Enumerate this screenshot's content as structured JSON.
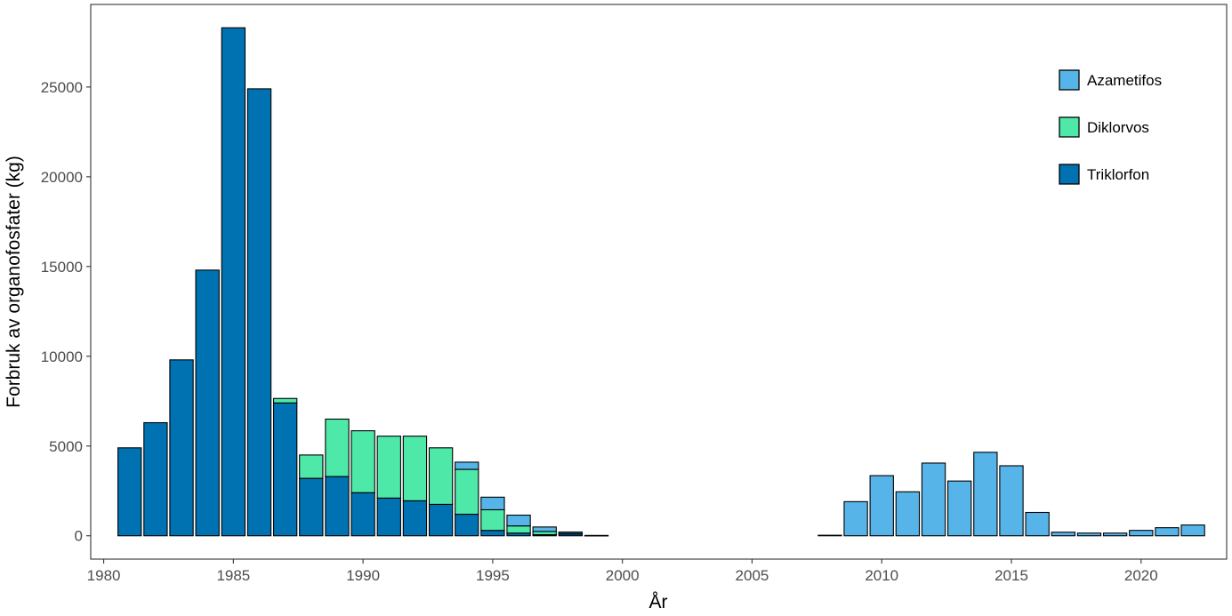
{
  "chart_data": {
    "type": "bar",
    "stacked": true,
    "title": "",
    "xlabel": "År",
    "ylabel": "Forbruk av organofosfater (kg)",
    "xlim": [
      1979.5,
      2023.3
    ],
    "ylim": [
      -1300,
      29600
    ],
    "x_ticks": [
      1980,
      1985,
      1990,
      1995,
      2000,
      2005,
      2010,
      2015,
      2020
    ],
    "y_ticks": [
      0,
      5000,
      10000,
      15000,
      20000,
      25000
    ],
    "grid": false,
    "legend_position": "top-right",
    "stack_order": [
      "Triklorfon",
      "Diklorvos",
      "Azametifos"
    ],
    "legend_order": [
      "Azametifos",
      "Diklorvos",
      "Triklorfon"
    ],
    "colors": {
      "Azametifos": "#56b4e9",
      "Diklorvos": "#4ee8a8",
      "Triklorfon": "#0072b2"
    },
    "x": [
      1981,
      1982,
      1983,
      1984,
      1985,
      1986,
      1987,
      1988,
      1989,
      1990,
      1991,
      1992,
      1993,
      1994,
      1995,
      1996,
      1997,
      1998,
      1999,
      2008,
      2009,
      2010,
      2011,
      2012,
      2013,
      2014,
      2015,
      2016,
      2017,
      2018,
      2019,
      2020,
      2021,
      2022
    ],
    "series": [
      {
        "name": "Triklorfon",
        "values": [
          4900,
          6300,
          9800,
          14800,
          28300,
          24900,
          7400,
          3200,
          3300,
          2400,
          2100,
          1950,
          1750,
          1200,
          300,
          150,
          60,
          100,
          20,
          30,
          0,
          0,
          0,
          0,
          0,
          0,
          0,
          0,
          0,
          0,
          0,
          0,
          0,
          0
        ]
      },
      {
        "name": "Diklorvos",
        "values": [
          0,
          0,
          0,
          0,
          0,
          0,
          250,
          1300,
          3200,
          3450,
          3450,
          3600,
          3150,
          2500,
          1150,
          400,
          180,
          30,
          0,
          0,
          0,
          0,
          0,
          0,
          0,
          0,
          0,
          0,
          0,
          0,
          0,
          0,
          0,
          0
        ]
      },
      {
        "name": "Azametifos",
        "values": [
          0,
          0,
          0,
          0,
          0,
          0,
          0,
          0,
          0,
          0,
          0,
          0,
          0,
          400,
          700,
          600,
          250,
          80,
          0,
          0,
          1900,
          3350,
          2450,
          4050,
          3050,
          4650,
          3900,
          1300,
          200,
          150,
          150,
          300,
          450,
          600
        ]
      }
    ]
  }
}
